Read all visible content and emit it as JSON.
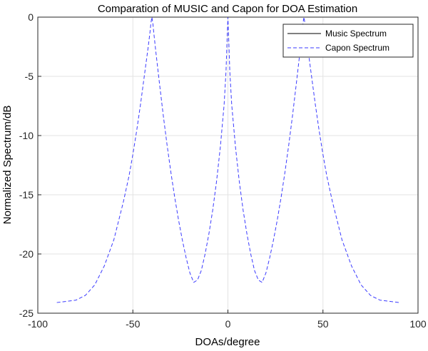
{
  "chart_data": {
    "type": "line",
    "title": "Comparation of MUSIC and Capon for DOA Estimation",
    "xlabel": "DOAs/degree",
    "ylabel": "Normalized Spectrum/dB",
    "xlim": [
      -100,
      100
    ],
    "ylim": [
      -25,
      0
    ],
    "xticks": [
      -100,
      -50,
      0,
      50,
      100
    ],
    "yticks": [
      0,
      -5,
      -10,
      -15,
      -20,
      -25
    ],
    "xtick_labels": [
      "-100",
      "-50",
      "0",
      "50",
      "100"
    ],
    "ytick_labels": [
      "0",
      "-5",
      "-10",
      "-15",
      "-20",
      "-25"
    ],
    "grid": true,
    "legend_position": "top-right",
    "series": [
      {
        "name": "Music Spectrum",
        "color": "#000000",
        "style": "solid",
        "x": [],
        "values": []
      },
      {
        "name": "Capon Spectrum",
        "color": "#3b3bff",
        "style": "dashed",
        "x": [
          -90,
          -85,
          -80,
          -75,
          -70,
          -65,
          -60,
          -55,
          -52,
          -50,
          -48,
          -46,
          -44,
          -42,
          -41,
          -40.5,
          -40,
          -39.5,
          -39,
          -38,
          -36,
          -34,
          -32,
          -30,
          -28,
          -26,
          -24,
          -22,
          -20,
          -18,
          -16,
          -14,
          -12,
          -10,
          -8,
          -6,
          -4,
          -2,
          -1,
          -0.5,
          0,
          0.5,
          1,
          2,
          4,
          6,
          8,
          10,
          12,
          14,
          16,
          18,
          20,
          22,
          24,
          26,
          28,
          30,
          32,
          34,
          36,
          38,
          39,
          39.5,
          40,
          40.5,
          41,
          42,
          44,
          46,
          48,
          50,
          52,
          55,
          60,
          65,
          70,
          75,
          80,
          85,
          90
        ],
        "values": [
          -24.1,
          -24.0,
          -23.9,
          -23.5,
          -22.6,
          -21.0,
          -18.8,
          -15.6,
          -13.4,
          -11.6,
          -9.6,
          -7.4,
          -5.0,
          -2.6,
          -1.3,
          -0.5,
          0.0,
          -0.5,
          -1.3,
          -2.8,
          -5.6,
          -8.3,
          -10.8,
          -13.1,
          -15.2,
          -17.1,
          -18.8,
          -20.3,
          -21.6,
          -22.4,
          -22.2,
          -21.4,
          -20.0,
          -18.3,
          -16.3,
          -13.9,
          -11.0,
          -7.4,
          -4.6,
          -2.2,
          0.0,
          -2.2,
          -4.6,
          -7.4,
          -11.0,
          -13.9,
          -16.3,
          -18.3,
          -20.0,
          -21.4,
          -22.2,
          -22.4,
          -21.6,
          -20.3,
          -18.8,
          -17.1,
          -15.2,
          -13.1,
          -10.8,
          -8.3,
          -5.6,
          -2.8,
          -1.3,
          -0.5,
          0.0,
          -0.5,
          -1.3,
          -2.6,
          -5.0,
          -7.4,
          -9.6,
          -11.6,
          -13.4,
          -15.6,
          -18.8,
          -21.0,
          -22.6,
          -23.5,
          -23.9,
          -24.0,
          -24.1
        ]
      }
    ]
  }
}
